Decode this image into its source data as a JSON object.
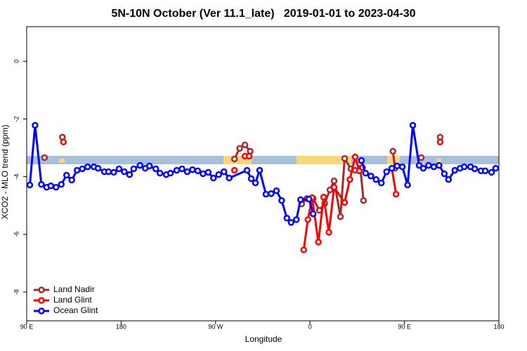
{
  "chart_data": {
    "type": "line",
    "title": "5N-10N October (Ver 11.1_late)   2019-01-01 to 2023-04-30",
    "x_label": "Longitude",
    "y_label": "XCO2 - MLO trend (ppm)",
    "xlim": [
      90,
      540
    ],
    "ylim": [
      -9,
      1.2
    ],
    "xticks": [
      {
        "value": 90,
        "label": "90 E"
      },
      {
        "value": 180,
        "label": "180"
      },
      {
        "value": 270,
        "label": "90 W"
      },
      {
        "value": 360,
        "label": "0"
      },
      {
        "value": 450,
        "label": "90 E"
      },
      {
        "value": 540,
        "label": "180"
      }
    ],
    "yticks": [
      0,
      -2,
      -4,
      -6,
      -8
    ],
    "legend": "bottom-left",
    "series": [
      {
        "name": "Land Nadir",
        "color": "#a52a2a",
        "x": [
          107,
          null,
          124,
          null,
          288,
          293,
          298,
          303,
          null,
          352,
          357,
          363,
          369,
          374,
          379,
          383,
          389,
          393,
          399,
          403,
          408,
          411,
          null,
          439,
          441,
          null,
          466,
          null,
          484
        ],
        "values": [
          -3.34,
          null,
          -2.63,
          null,
          -3.39,
          -3.02,
          -2.9,
          -3.12,
          null,
          -4.95,
          -4.76,
          -4.76,
          -5.17,
          -4.93,
          -4.46,
          -4.15,
          -5.39,
          -3.37,
          -3.73,
          -3.78,
          -3.71,
          -4.83,
          null,
          -3.12,
          -3.71,
          null,
          -3.34,
          null,
          -2.63
        ]
      },
      {
        "name": "Land Glint",
        "color": "#ff0000",
        "x": [
          125,
          null,
          288,
          null,
          298,
          302,
          null,
          354,
          358,
          362,
          368,
          373,
          378,
          383,
          393,
          398,
          403,
          407,
          410,
          null,
          438,
          442,
          null,
          484
        ],
        "values": [
          -2.8,
          null,
          -3.78,
          null,
          -3.29,
          -3.29,
          null,
          -6.54,
          -5.49,
          -4.73,
          -6.27,
          -4.71,
          -5.93,
          -4.37,
          -4.9,
          -4.1,
          -3.32,
          -3.8,
          -3.68,
          null,
          -3.71,
          -4.61,
          null,
          -2.8
        ]
      },
      {
        "name": "Ocean Glint",
        "color": "#0000ff",
        "x": [
          93,
          98,
          104,
          109,
          113,
          118,
          123,
          128,
          133,
          138,
          143,
          148,
          154,
          158,
          164,
          168,
          173,
          178,
          183,
          188,
          192,
          198,
          203,
          207,
          213,
          217,
          223,
          227,
          233,
          238,
          243,
          248,
          253,
          258,
          263,
          268,
          273,
          278,
          283,
          300,
          304,
          308,
          312,
          318,
          323,
          328,
          333,
          338,
          342,
          347,
          351,
          359,
          363,
          null,
          409,
          413,
          418,
          423,
          428,
          433,
          438,
          443,
          448,
          453,
          458,
          464,
          468,
          473,
          478,
          483,
          488,
          492,
          498,
          503,
          507,
          513,
          517,
          523,
          527,
          533,
          537
        ],
        "values": [
          -4.29,
          -2.22,
          -4.27,
          -4.37,
          -4.32,
          -4.37,
          -4.27,
          -3.95,
          -4.12,
          -3.78,
          -3.73,
          -3.66,
          -3.66,
          -3.71,
          -3.83,
          -3.83,
          -3.85,
          -3.73,
          -3.83,
          -3.93,
          -3.73,
          -3.61,
          -3.71,
          -3.63,
          -3.73,
          -3.88,
          -3.93,
          -3.88,
          -3.78,
          -3.73,
          -3.83,
          -3.76,
          -3.8,
          -3.9,
          -3.85,
          -4.05,
          -3.93,
          -3.83,
          -4.05,
          -3.78,
          -4.07,
          -4.22,
          -3.78,
          -4.61,
          -4.59,
          -4.49,
          -4.83,
          -5.44,
          -5.59,
          -5.49,
          -4.8,
          -4.78,
          -5.29,
          null,
          -3.44,
          -3.88,
          -3.98,
          -4.1,
          -4.22,
          -3.83,
          -3.71,
          -3.63,
          -3.66,
          -4.29,
          -2.22,
          -3.61,
          -3.71,
          -3.61,
          -3.66,
          -3.61,
          -3.9,
          -4.1,
          -3.78,
          -3.71,
          -3.66,
          -3.66,
          -3.73,
          -3.8,
          -3.8,
          -3.85,
          -3.71
        ]
      }
    ]
  }
}
